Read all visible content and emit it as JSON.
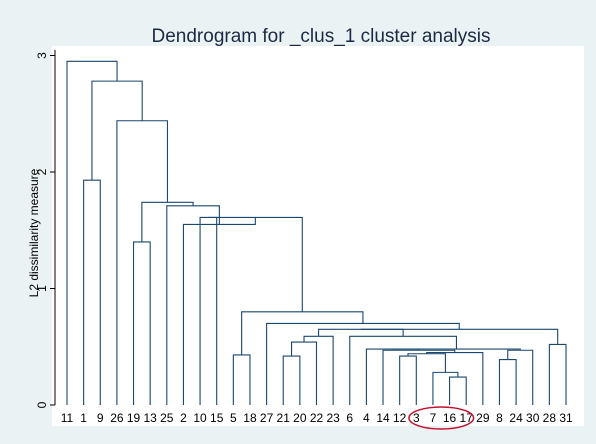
{
  "chart_data": {
    "type": "dendrogram",
    "title": "Dendrogram for _clus_1 cluster analysis",
    "ylabel": "L2 dissimilarity measure",
    "xlabel": "",
    "ylim": [
      0,
      3.1
    ],
    "yticks": [
      "0",
      "1",
      "2",
      "3"
    ],
    "grid": false,
    "leaves": [
      "11",
      "1",
      "9",
      "26",
      "19",
      "13",
      "25",
      "2",
      "10",
      "15",
      "5",
      "18",
      "27",
      "21",
      "20",
      "22",
      "23",
      "6",
      "4",
      "14",
      "12",
      "3",
      "7",
      "16",
      "17",
      "29",
      "8",
      "24",
      "30",
      "28",
      "31"
    ],
    "merges": [
      {
        "left": "16",
        "right": "17",
        "height": 0.24
      },
      {
        "left": "7",
        "right": "m1",
        "height": 0.28
      },
      {
        "left": "12",
        "right": "3",
        "height": 0.42
      },
      {
        "left": "m3",
        "right": "m2",
        "height": 0.44
      },
      {
        "left": "m4",
        "right": "29",
        "height": 0.45
      },
      {
        "left": "14",
        "right": "m5",
        "height": 0.47
      },
      {
        "left": "4",
        "right": "m6",
        "height": 0.48
      },
      {
        "left": "8",
        "right": "24",
        "height": 0.39
      },
      {
        "left": "m8",
        "right": "30",
        "height": 0.47
      },
      {
        "left": "m7",
        "right": "m9",
        "height": 0.48
      },
      {
        "left": "28",
        "right": "31",
        "height": 0.52
      },
      {
        "left": "21",
        "right": "20",
        "height": 0.42
      },
      {
        "left": "m12",
        "right": "22",
        "height": 0.54
      },
      {
        "left": "m13",
        "right": "23",
        "height": 0.59
      },
      {
        "left": "6",
        "right": "m10",
        "height": 0.59
      },
      {
        "left": "m14",
        "right": "m15",
        "height": 0.65
      },
      {
        "left": "m16",
        "right": "m11",
        "height": 0.65
      },
      {
        "left": "27",
        "right": "m17",
        "height": 0.7
      },
      {
        "left": "5",
        "right": "18",
        "height": 0.43
      },
      {
        "left": "m19",
        "right": "m18",
        "height": 0.8
      },
      {
        "left": "10",
        "right": "15",
        "height": 1.61
      },
      {
        "left": "m21",
        "right": "m20",
        "height": 1.61
      },
      {
        "left": "2",
        "right": "m22",
        "height": 1.55
      },
      {
        "left": "25",
        "right": "m23",
        "height": 1.71
      },
      {
        "left": "19",
        "right": "13",
        "height": 1.4
      },
      {
        "left": "m25",
        "right": "m24",
        "height": 1.74
      },
      {
        "left": "26",
        "right": "m26",
        "height": 2.44
      },
      {
        "left": "1",
        "right": "9",
        "height": 1.93
      },
      {
        "left": "m28",
        "right": "m27",
        "height": 2.78
      },
      {
        "left": "11",
        "right": "m29",
        "height": 2.95
      }
    ],
    "annotation": {
      "type": "ellipse",
      "around_leaves": [
        "7",
        "16"
      ],
      "color": "#c8102e"
    }
  },
  "colors": {
    "background": "#eaf2f3",
    "plot_background": "#ffffff",
    "line": "#1a476f",
    "title": "#1b2a44",
    "highlight": "#c8102e"
  }
}
